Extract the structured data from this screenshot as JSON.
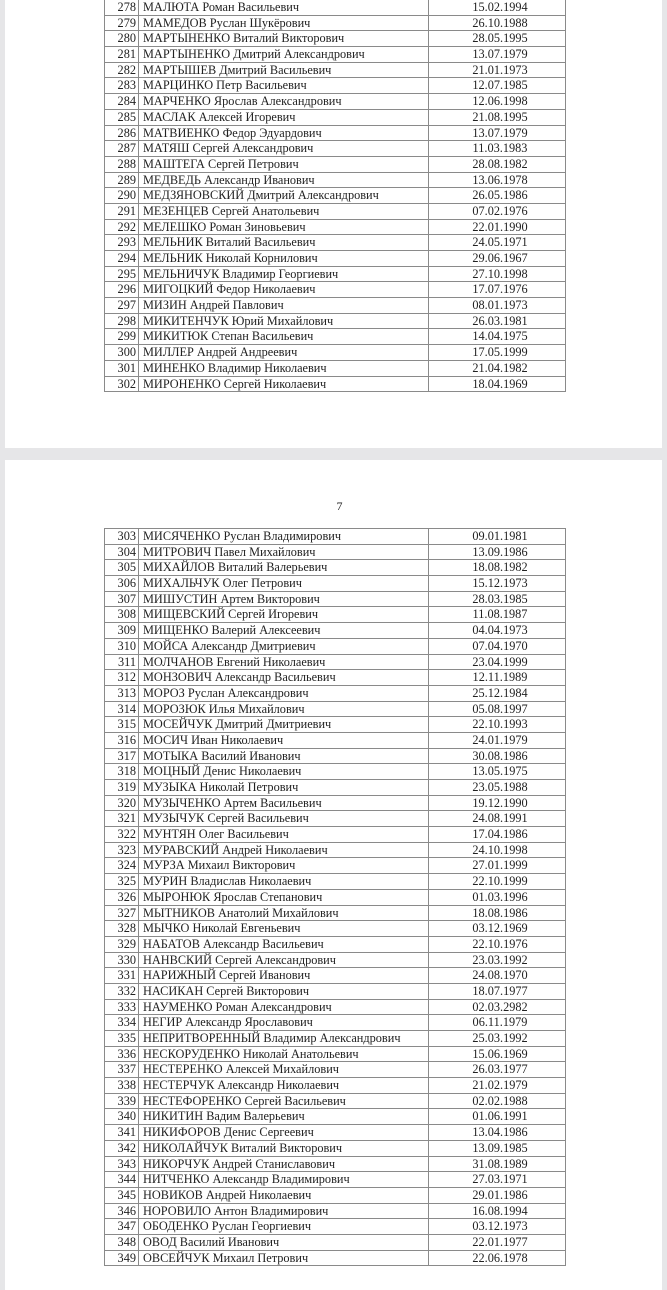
{
  "page1": {
    "rows": [
      [
        "278",
        "МАЛЮТА Роман Васильевич",
        "15.02.1994"
      ],
      [
        "279",
        "МАМЕДОВ Руслан Шукёрович",
        "26.10.1988"
      ],
      [
        "280",
        "МАРТЫНЕНКО Виталий Викторович",
        "28.05.1995"
      ],
      [
        "281",
        "МАРТЫНЕНКО Дмитрий Александрович",
        "13.07.1979"
      ],
      [
        "282",
        "МАРТЫШЕВ Дмитрий Васильевич",
        "21.01.1973"
      ],
      [
        "283",
        "МАРЦИНКО Петр Васильевич",
        "12.07.1985"
      ],
      [
        "284",
        "МАРЧЕНКО Ярослав Александрович",
        "12.06.1998"
      ],
      [
        "285",
        "МАСЛАК Алексей Игоревич",
        "21.08.1995"
      ],
      [
        "286",
        "МАТВИЕНКО Федор Эдуардович",
        "13.07.1979"
      ],
      [
        "287",
        "МАТЯШ Сергей Александрович",
        "11.03.1983"
      ],
      [
        "288",
        "МАШТЕГА Сергей Петрович",
        "28.08.1982"
      ],
      [
        "289",
        "МЕДВЕДЬ Александр Иванович",
        "13.06.1978"
      ],
      [
        "290",
        "МЕДЗЯНОВСКИЙ Дмитрий Александрович",
        "26.05.1986"
      ],
      [
        "291",
        "МЕЗЕНЦЕВ Сергей Анатольевич",
        "07.02.1976"
      ],
      [
        "292",
        "МЕЛЕШКО Роман Зиновьевич",
        "22.01.1990"
      ],
      [
        "293",
        "МЕЛЬНИК Виталий Васильевич",
        "24.05.1971"
      ],
      [
        "294",
        "МЕЛЬНИК Николай Корнилович",
        "29.06.1967"
      ],
      [
        "295",
        "МЕЛЬНИЧУК Владимир Георгиевич",
        "27.10.1998"
      ],
      [
        "296",
        "МИГОЦКИЙ Федор Николаевич",
        "17.07.1976"
      ],
      [
        "297",
        "МИЗИН Андрей Павлович",
        "08.01.1973"
      ],
      [
        "298",
        "МИКИТЕНЧУК Юрий Михайлович",
        "26.03.1981"
      ],
      [
        "299",
        "МИКИТЮК Степан Васильевич",
        "14.04.1975"
      ],
      [
        "300",
        "МИЛЛЕР Андрей Андреевич",
        "17.05.1999"
      ],
      [
        "301",
        "МИНЕНКО Владимир Николаевич",
        "21.04.1982"
      ],
      [
        "302",
        "МИРОНЕНКО Сергей Николаевич",
        "18.04.1969"
      ]
    ]
  },
  "page2": {
    "page_number": "7",
    "rows": [
      [
        "303",
        "МИСЯЧЕНКО Руслан Владимирович",
        "09.01.1981"
      ],
      [
        "304",
        "МИТРОВИЧ Павел Михайлович",
        "13.09.1986"
      ],
      [
        "305",
        "МИХАЙЛОВ Виталий Валерьевич",
        "18.08.1982"
      ],
      [
        "306",
        "МИХАЛЬЧУК Олег Петрович",
        "15.12.1973"
      ],
      [
        "307",
        "МИШУСТИН Артем Викторович",
        "28.03.1985"
      ],
      [
        "308",
        "МИЩЕВСКИЙ Сергей Игоревич",
        "11.08.1987"
      ],
      [
        "309",
        "МИЩЕНКО Валерий Алексеевич",
        "04.04.1973"
      ],
      [
        "310",
        "МОЙСА Александр Дмитриевич",
        "07.04.1970"
      ],
      [
        "311",
        "МОЛЧАНОВ Евгений Николаевич",
        "23.04.1999"
      ],
      [
        "312",
        "МОНЗОВИЧ Александр Васильевич",
        "12.11.1989"
      ],
      [
        "313",
        "МОРОЗ Руслан Александрович",
        "25.12.1984"
      ],
      [
        "314",
        "МОРОЗЮК Илья Михайлович",
        "05.08.1997"
      ],
      [
        "315",
        "МОСЕЙЧУК Дмитрий Дмитриевич",
        "22.10.1993"
      ],
      [
        "316",
        "МОСИЧ Иван Николаевич",
        "24.01.1979"
      ],
      [
        "317",
        "МОТЫКА Василий Иванович",
        "30.08.1986"
      ],
      [
        "318",
        "МОЦНЫЙ Денис Николаевич",
        "13.05.1975"
      ],
      [
        "319",
        "МУЗЫКА Николай Петрович",
        "23.05.1988"
      ],
      [
        "320",
        "МУЗЫЧЕНКО Артем Васильевич",
        "19.12.1990"
      ],
      [
        "321",
        "МУЗЫЧУК Сергей Васильевич",
        "24.08.1991"
      ],
      [
        "322",
        "МУНТЯН Олег Васильевич",
        "17.04.1986"
      ],
      [
        "323",
        "МУРАВСКИЙ Андрей Николаевич",
        "24.10.1998"
      ],
      [
        "324",
        "МУРЗА Михаил Викторович",
        "27.01.1999"
      ],
      [
        "325",
        "МУРИН Владислав Николаевич",
        "22.10.1999"
      ],
      [
        "326",
        "МЫРОНЮК Ярослав Степанович",
        "01.03.1996"
      ],
      [
        "327",
        "МЫТНИКОВ Анатолий Михайлович",
        "18.08.1986"
      ],
      [
        "328",
        "МЫЧКО Николай Евгеньевич",
        "03.12.1969"
      ],
      [
        "329",
        "НАБАТОВ Александр Васильевич",
        "22.10.1976"
      ],
      [
        "330",
        "НАНВСКИЙ Сергей Александрович",
        "23.03.1992"
      ],
      [
        "331",
        "НАРИЖНЫЙ Сергей Иванович",
        "24.08.1970"
      ],
      [
        "332",
        "НАСИКАН Сергей Викторович",
        "18.07.1977"
      ],
      [
        "333",
        "НАУМЕНКО Роман Александрович",
        "02.03.2982"
      ],
      [
        "334",
        "НЕГИР Александр Ярославович",
        "06.11.1979"
      ],
      [
        "335",
        "НЕПРИТВОРЕННЫЙ Владимир Александрович",
        "25.03.1992"
      ],
      [
        "336",
        "НЕСКОРУДЕНКО Николай Анатольевич",
        "15.06.1969"
      ],
      [
        "337",
        "НЕСТЕРЕНКО Алексей Михайлович",
        "26.03.1977"
      ],
      [
        "338",
        "НЕСТЕРЧУК Александр Николаевич",
        "21.02.1979"
      ],
      [
        "339",
        "НЕСТЕФОРЕНКО Сергей Васильевич",
        "02.02.1988"
      ],
      [
        "340",
        "НИКИТИН Вадим Валерьевич",
        "01.06.1991"
      ],
      [
        "341",
        "НИКИФОРОВ Денис Сергеевич",
        "13.04.1986"
      ],
      [
        "342",
        "НИКОЛАЙЧУК Виталий Викторович",
        "13.09.1985"
      ],
      [
        "343",
        "НИКОРЧУК Андрей Станиславович",
        "31.08.1989"
      ],
      [
        "344",
        "НИТЧЕНКО Александр Владимирович",
        "27.03.1971"
      ],
      [
        "345",
        "НОВИКОВ Андрей Николаевич",
        "29.01.1986"
      ],
      [
        "346",
        "НОРОВИЛО Антон Владимирович",
        "16.08.1994"
      ],
      [
        "347",
        "ОБОДЕНКО Руслан Георгиевич",
        "03.12.1973"
      ],
      [
        "348",
        "ОВОД Василий Иванович",
        "22.01.1977"
      ],
      [
        "349",
        "ОВСЕЙЧУК Михаил Петрович",
        "22.06.1978"
      ]
    ]
  }
}
